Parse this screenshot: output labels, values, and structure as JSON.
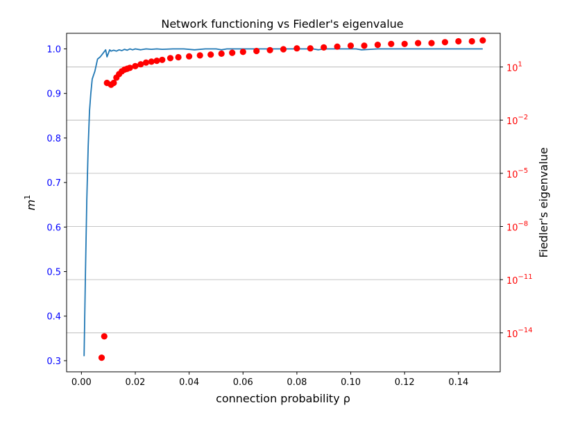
{
  "chart_data": {
    "type": "line+scatter",
    "title": "Network functioning vs Fiedler's eigenvalue",
    "xlabel": "connection probability ρ",
    "ylabel_left": "m",
    "ylabel_left_sup": "1",
    "ylabel_right": "Fiedler's eigenvalue",
    "xlim": [
      -0.0055,
      0.1555
    ],
    "xticks": [
      0.0,
      0.02,
      0.04,
      0.06,
      0.08,
      0.1,
      0.12,
      0.14
    ],
    "xtick_labels": [
      "0.00",
      "0.02",
      "0.04",
      "0.06",
      "0.08",
      "0.10",
      "0.12",
      "0.14"
    ],
    "left_axis": {
      "scale": "linear",
      "ylim": [
        0.275,
        1.035
      ],
      "ticks": [
        0.3,
        0.4,
        0.5,
        0.6,
        0.7,
        0.8,
        0.9,
        1.0
      ],
      "tick_labels": [
        "0.3",
        "0.4",
        "0.5",
        "0.6",
        "0.7",
        "0.8",
        "0.9",
        "1.0"
      ],
      "color": "#0000ff"
    },
    "right_axis": {
      "scale": "log",
      "ylim_exp": [
        -16.2,
        2.9
      ],
      "ticks_exp": [
        1,
        -2,
        -5,
        -8,
        -11,
        -14
      ],
      "tick_labels": [
        {
          "base": "10",
          "exp": "1"
        },
        {
          "base": "10",
          "exp": "−2"
        },
        {
          "base": "10",
          "exp": "−5"
        },
        {
          "base": "10",
          "exp": "−8"
        },
        {
          "base": "10",
          "exp": "−11"
        },
        {
          "base": "10",
          "exp": "−14"
        }
      ],
      "color": "#ff0000",
      "grid": true
    },
    "series": [
      {
        "kind": "line",
        "color": "#1f77b4",
        "axis": "left",
        "x": [
          0.001,
          0.0015,
          0.002,
          0.0025,
          0.003,
          0.0035,
          0.004,
          0.005,
          0.006,
          0.007,
          0.008,
          0.009,
          0.0095,
          0.0105,
          0.011,
          0.012,
          0.013,
          0.014,
          0.015,
          0.016,
          0.017,
          0.018,
          0.019,
          0.02,
          0.022,
          0.024,
          0.026,
          0.028,
          0.03,
          0.034,
          0.038,
          0.042,
          0.046,
          0.05,
          0.052,
          0.054,
          0.06,
          0.07,
          0.08,
          0.086,
          0.088,
          0.09,
          0.1,
          0.102,
          0.104,
          0.11,
          0.12,
          0.13,
          0.14,
          0.145,
          0.149
        ],
        "y": [
          0.31,
          0.5,
          0.66,
          0.78,
          0.86,
          0.9,
          0.932,
          0.95,
          0.977,
          0.982,
          0.99,
          0.998,
          0.982,
          0.998,
          0.995,
          0.997,
          0.995,
          0.998,
          0.996,
          0.999,
          0.997,
          1.0,
          0.998,
          1.0,
          0.998,
          1.0,
          0.999,
          1.0,
          0.999,
          1.0,
          1.0,
          0.998,
          1.0,
          1.0,
          0.998,
          1.0,
          1.0,
          1.0,
          1.0,
          1.0,
          0.998,
          1.0,
          1.0,
          1.0,
          0.998,
          1.0,
          1.0,
          1.0,
          1.0,
          1.0,
          1.0
        ]
      },
      {
        "kind": "scatter",
        "color": "#ff0000",
        "axis": "right",
        "y_unit": "log10",
        "x": [
          0.0075,
          0.0085,
          0.0095,
          0.011,
          0.012,
          0.013,
          0.014,
          0.015,
          0.016,
          0.017,
          0.018,
          0.02,
          0.022,
          0.024,
          0.026,
          0.028,
          0.03,
          0.033,
          0.036,
          0.04,
          0.044,
          0.048,
          0.052,
          0.056,
          0.06,
          0.065,
          0.07,
          0.075,
          0.08,
          0.085,
          0.09,
          0.095,
          0.1,
          0.105,
          0.11,
          0.115,
          0.12,
          0.125,
          0.13,
          0.135,
          0.14,
          0.145,
          0.149
        ],
        "y": [
          -15.4,
          -14.2,
          0.1,
          0.0,
          0.1,
          0.4,
          0.6,
          0.75,
          0.85,
          0.9,
          0.95,
          1.05,
          1.15,
          1.25,
          1.3,
          1.35,
          1.4,
          1.5,
          1.55,
          1.6,
          1.65,
          1.7,
          1.75,
          1.8,
          1.85,
          1.9,
          1.95,
          2.0,
          2.05,
          2.05,
          2.1,
          2.15,
          2.2,
          2.2,
          2.25,
          2.3,
          2.3,
          2.35,
          2.35,
          2.4,
          2.45,
          2.45,
          2.5
        ]
      }
    ],
    "grid": "right-axis horizontal lines",
    "legend": "none"
  }
}
